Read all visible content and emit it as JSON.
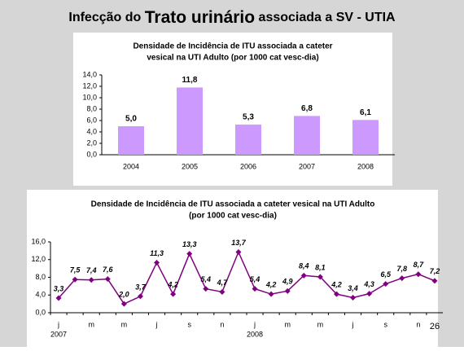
{
  "slide": {
    "title_parts": [
      "Infecção do",
      "Trato urinário",
      "associada a SV - UTIA"
    ],
    "page_number": "26"
  },
  "chart_data": [
    {
      "type": "bar",
      "title": [
        "Densidade de Incidência de ITU associada a cateter",
        "vesical na UTI Adulto (por 1000 cat vesc-dia)"
      ],
      "categories": [
        "2004",
        "2005",
        "2006",
        "2007",
        "2008"
      ],
      "values": [
        5.0,
        11.8,
        5.3,
        6.8,
        6.1
      ],
      "value_labels": [
        "5,0",
        "11,8",
        "5,3",
        "6,8",
        "6,1"
      ],
      "color": "#cc99ff",
      "ylim": [
        0,
        14
      ],
      "yticks": [
        {
          "value": 0,
          "label": "0,0"
        },
        {
          "value": 2,
          "label": "2,0"
        },
        {
          "value": 4,
          "label": "4,0"
        },
        {
          "value": 6,
          "label": "6,0"
        },
        {
          "value": 8,
          "label": "8,0"
        },
        {
          "value": 10,
          "label": "10,0"
        },
        {
          "value": 12,
          "label": "12,0"
        },
        {
          "value": 14,
          "label": "14,0"
        }
      ]
    },
    {
      "type": "line",
      "title": [
        "Densidade de Incidência de ITU associada a cateter vesical na UTI Adulto",
        "(por 1000 cat vesc-dia)"
      ],
      "categories": [
        "j",
        null,
        "m",
        null,
        "m",
        null,
        "j",
        null,
        "s",
        null,
        "n",
        null,
        "j",
        null,
        "m",
        null,
        "m",
        null,
        "j",
        null,
        "s",
        null,
        "n",
        null
      ],
      "years": [
        "2007",
        "2008"
      ],
      "values": [
        3.3,
        7.5,
        7.4,
        7.6,
        2.0,
        3.7,
        11.3,
        4.2,
        13.3,
        5.4,
        4.7,
        13.7,
        5.4,
        4.2,
        4.9,
        8.4,
        8.1,
        4.2,
        3.4,
        4.3,
        6.5,
        7.8,
        8.7,
        7.2
      ],
      "value_labels": [
        "3,3",
        "7,5",
        "7,4",
        "7,6",
        "2,0",
        "3,7",
        "11,3",
        "4,2",
        "13,3",
        "5,4",
        "4,7",
        "13,7",
        "5,4",
        "4,2",
        "4,9",
        "8,4",
        "8,1",
        "4,2",
        "3,4",
        "4,3",
        "6,5",
        "7,8",
        "8,7",
        "7,2"
      ],
      "color": "#800080",
      "ylim": [
        0,
        16
      ],
      "yticks": [
        {
          "value": 0,
          "label": "0,0"
        },
        {
          "value": 4,
          "label": "4,0"
        },
        {
          "value": 8,
          "label": "8,0"
        },
        {
          "value": 12,
          "label": "12,0"
        },
        {
          "value": 16,
          "label": "16,0"
        }
      ]
    }
  ]
}
